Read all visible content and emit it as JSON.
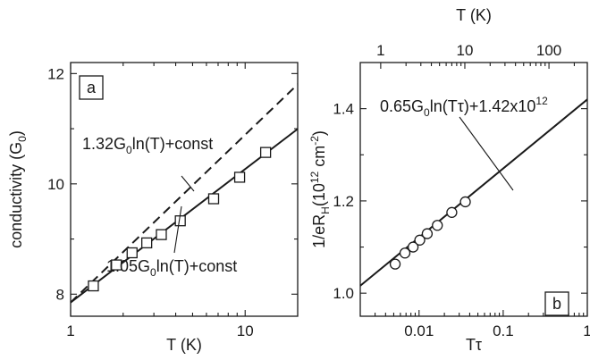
{
  "chart_data": [
    {
      "type": "scatter",
      "panel_label": "a",
      "xlabel": "T (K)",
      "ylabel": "conductivity (G",
      "ylabel_sub": "0",
      "ylabel_end": ")",
      "xscale": "log",
      "xlim": [
        1,
        20
      ],
      "ylim": [
        7.6,
        12.2
      ],
      "xticks": [
        1,
        10
      ],
      "xtick_labels": [
        "1",
        "10"
      ],
      "yticks": [
        8,
        10,
        12
      ],
      "ytick_labels": [
        "8",
        "10",
        "12"
      ],
      "points": [
        {
          "x": 1.35,
          "y": 8.15
        },
        {
          "x": 1.83,
          "y": 8.53
        },
        {
          "x": 2.25,
          "y": 8.75
        },
        {
          "x": 2.73,
          "y": 8.93
        },
        {
          "x": 3.31,
          "y": 9.08
        },
        {
          "x": 4.25,
          "y": 9.33
        },
        {
          "x": 6.6,
          "y": 9.73
        },
        {
          "x": 9.3,
          "y": 10.12
        },
        {
          "x": 13.1,
          "y": 10.57
        }
      ],
      "lines": [
        {
          "style": "solid",
          "slope_per_ln": 1.05,
          "y_at_1": 7.85
        },
        {
          "style": "dashed",
          "slope_per_ln": 1.32,
          "y_at_1": 7.85
        }
      ],
      "annotations": [
        {
          "text": "1.32G",
          "sub": "0",
          "rest": "ln(T)+const"
        },
        {
          "text": "1.05G",
          "sub": "0",
          "rest": "ln(T)+const"
        }
      ]
    },
    {
      "type": "scatter",
      "panel_label": "b",
      "xlabel": "Tτ",
      "ylabel": "1/eR",
      "ylabel_sub": "H",
      "ylabel_mid": "(10",
      "ylabel_sup": "12",
      "ylabel_mid2": " cm",
      "ylabel_sup2": "-2",
      "ylabel_end": ")",
      "top_xlabel": "T (K)",
      "xscale": "log",
      "xlim": [
        0.002,
        1
      ],
      "ylim": [
        0.95,
        1.5
      ],
      "xticks": [
        0.01,
        0.1,
        1
      ],
      "xtick_labels": [
        "0.01",
        "0.1",
        "1"
      ],
      "yticks": [
        1.0,
        1.2,
        1.4
      ],
      "ytick_labels": [
        "1.0",
        "1.2",
        "1.4"
      ],
      "top_xticks": [
        1,
        10,
        100
      ],
      "top_xtick_labels": [
        "1",
        "10",
        "100"
      ],
      "top_axis_tau": 0.0035,
      "points": [
        {
          "x": 0.0052,
          "y": 1.063
        },
        {
          "x": 0.0068,
          "y": 1.087
        },
        {
          "x": 0.0085,
          "y": 1.1
        },
        {
          "x": 0.0102,
          "y": 1.115
        },
        {
          "x": 0.0125,
          "y": 1.129
        },
        {
          "x": 0.0165,
          "y": 1.147
        },
        {
          "x": 0.0245,
          "y": 1.175
        },
        {
          "x": 0.0355,
          "y": 1.198
        }
      ],
      "lines": [
        {
          "style": "solid",
          "slope_per_ln": 0.065,
          "y_at_1": 1.42
        }
      ],
      "annotations": [
        {
          "text": "0.65G",
          "sub": "0",
          "rest": "ln(Tτ)+1.42x10",
          "sup": "12"
        }
      ]
    }
  ]
}
